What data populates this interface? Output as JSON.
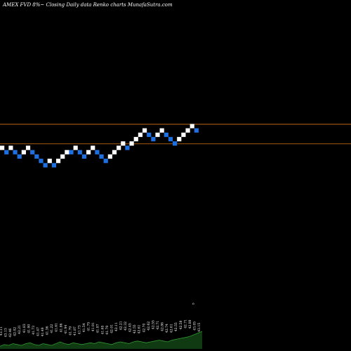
{
  "chart_title": "AMEX  FVD 8%~  Closing Daily data  Renko  charts MunafaSutra.com",
  "colors": {
    "background": "#000000",
    "up_brick": "#ffffff",
    "down_brick": "#1e6fe0",
    "reference_line": "#c06a16",
    "volume_area": "#0f3a12",
    "volume_line": "#2f9a2f",
    "label_text": "#ffffff"
  },
  "chart_data": {
    "type": "renko",
    "bricks": [
      {
        "level": 0,
        "dir": "up"
      },
      {
        "level": -1,
        "dir": "down"
      },
      {
        "level": 0,
        "dir": "up"
      },
      {
        "level": -1,
        "dir": "down"
      },
      {
        "level": -2,
        "dir": "down"
      },
      {
        "level": -1,
        "dir": "up"
      },
      {
        "level": 0,
        "dir": "up"
      },
      {
        "level": -1,
        "dir": "down"
      },
      {
        "level": -2,
        "dir": "down"
      },
      {
        "level": -3,
        "dir": "down"
      },
      {
        "level": -4,
        "dir": "down"
      },
      {
        "level": -3,
        "dir": "up"
      },
      {
        "level": -4,
        "dir": "down"
      },
      {
        "level": -3,
        "dir": "up"
      },
      {
        "level": -2,
        "dir": "up"
      },
      {
        "level": -1,
        "dir": "up"
      },
      {
        "level": -1,
        "dir": "down"
      },
      {
        "level": 0,
        "dir": "up"
      },
      {
        "level": -1,
        "dir": "down"
      },
      {
        "level": -2,
        "dir": "down"
      },
      {
        "level": -1,
        "dir": "up"
      },
      {
        "level": 0,
        "dir": "up"
      },
      {
        "level": -1,
        "dir": "down"
      },
      {
        "level": -2,
        "dir": "down"
      },
      {
        "level": -3,
        "dir": "down"
      },
      {
        "level": -2,
        "dir": "up"
      },
      {
        "level": -1,
        "dir": "up"
      },
      {
        "level": 0,
        "dir": "up"
      },
      {
        "level": 1,
        "dir": "up"
      },
      {
        "level": 0,
        "dir": "down"
      },
      {
        "level": 1,
        "dir": "up"
      },
      {
        "level": 2,
        "dir": "up"
      },
      {
        "level": 3,
        "dir": "up"
      },
      {
        "level": 4,
        "dir": "up"
      },
      {
        "level": 3,
        "dir": "down"
      },
      {
        "level": 2,
        "dir": "down"
      },
      {
        "level": 3,
        "dir": "up"
      },
      {
        "level": 4,
        "dir": "up"
      },
      {
        "level": 3,
        "dir": "down"
      },
      {
        "level": 2,
        "dir": "down"
      },
      {
        "level": 1,
        "dir": "down"
      },
      {
        "level": 2,
        "dir": "up"
      },
      {
        "level": 3,
        "dir": "up"
      },
      {
        "level": 4,
        "dir": "up"
      },
      {
        "level": 5,
        "dir": "up"
      },
      {
        "level": 4,
        "dir": "down"
      }
    ],
    "reference_levels": [
      5,
      1
    ],
    "price_labels": [
      "43.11",
      "43.13",
      "42.46",
      "42.02",
      "42.21",
      "41.83",
      "41.90",
      "41.73",
      "41.47",
      "41.49",
      "41.36",
      "41.22",
      "41.61",
      "41.86",
      "41.94",
      "41.79",
      "41.87",
      "41.73",
      "41.54",
      "41.75",
      "41.91",
      "41.87",
      "41.65",
      "41.79",
      "42.01",
      "42.11",
      "42.21",
      "42.32",
      "42.45",
      "42.55",
      "42.61",
      "42.70",
      "42.62",
      "42.55",
      "42.71",
      "42.86",
      "42.74",
      "42.61",
      "42.55",
      "42.58",
      "42.71",
      "42.88",
      "43.05",
      "43.15"
    ],
    "price_label_marker": "o",
    "volume": [
      3,
      5,
      4,
      6,
      5,
      4,
      6,
      7,
      5,
      4,
      6,
      5,
      4,
      6,
      8,
      6,
      5,
      7,
      6,
      5,
      6,
      7,
      6,
      8,
      7,
      6,
      5,
      7,
      8,
      7,
      6,
      8,
      9,
      8,
      7,
      8,
      9,
      10,
      9,
      8,
      10,
      11,
      12,
      13,
      14,
      16,
      18,
      20
    ]
  }
}
